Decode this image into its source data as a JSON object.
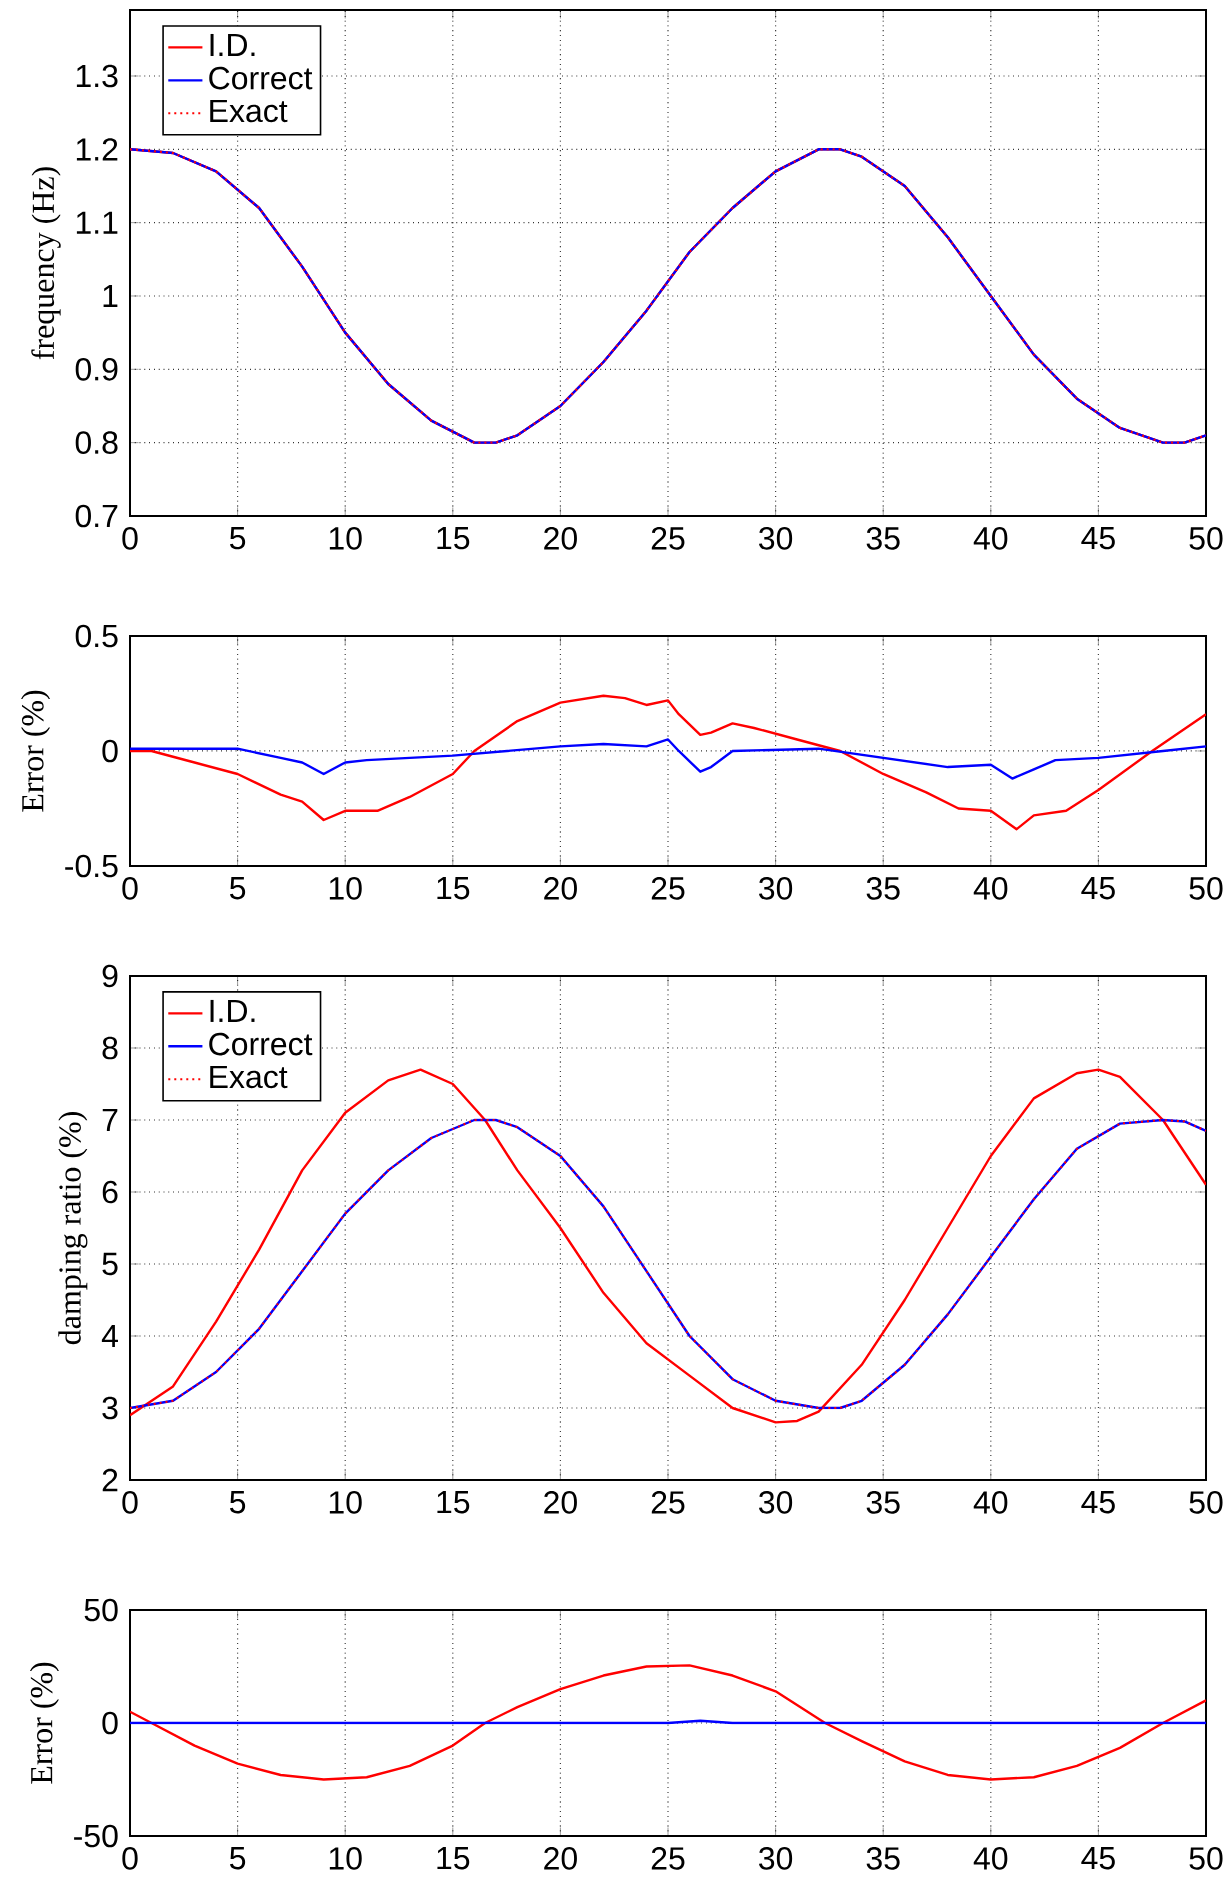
{
  "chart_data": [
    {
      "type": "line",
      "ylabel": "frequency (Hz)",
      "xlim": [
        0,
        50
      ],
      "ylim": [
        0.7,
        1.39
      ],
      "xticks": [
        0,
        5,
        10,
        15,
        20,
        25,
        30,
        35,
        40,
        45,
        50
      ],
      "yticks": [
        0.7,
        0.8,
        0.9,
        1,
        1.1,
        1.2,
        1.3
      ],
      "grid": true,
      "legend": "top left",
      "x": [
        0,
        2,
        4,
        6,
        8,
        10,
        12,
        14,
        16,
        17,
        18,
        20,
        22,
        24,
        26,
        28,
        30,
        32,
        33,
        34,
        36,
        38,
        40,
        42,
        44,
        46,
        48,
        49,
        50
      ],
      "series": [
        {
          "name": "I.D.",
          "color": "#ff0000",
          "line_style": "solid",
          "values": [
            1.2,
            1.195,
            1.17,
            1.12,
            1.04,
            0.95,
            0.88,
            0.83,
            0.8,
            0.8,
            0.81,
            0.85,
            0.91,
            0.98,
            1.06,
            1.12,
            1.17,
            1.2,
            1.2,
            1.19,
            1.15,
            1.08,
            1.0,
            0.92,
            0.86,
            0.82,
            0.8,
            0.8,
            0.81
          ]
        },
        {
          "name": "Correct",
          "color": "#0000ff",
          "line_style": "solid",
          "values": [
            1.2,
            1.195,
            1.17,
            1.12,
            1.04,
            0.95,
            0.88,
            0.83,
            0.8,
            0.8,
            0.81,
            0.85,
            0.91,
            0.98,
            1.06,
            1.12,
            1.17,
            1.2,
            1.2,
            1.19,
            1.15,
            1.08,
            1.0,
            0.92,
            0.86,
            0.82,
            0.8,
            0.8,
            0.81
          ]
        },
        {
          "name": "Exact",
          "color": "#ff0000",
          "line_style": "dotted",
          "values": [
            1.2,
            1.195,
            1.17,
            1.12,
            1.04,
            0.95,
            0.88,
            0.83,
            0.8,
            0.8,
            0.81,
            0.85,
            0.91,
            0.98,
            1.06,
            1.12,
            1.17,
            1.2,
            1.2,
            1.19,
            1.15,
            1.08,
            1.0,
            0.92,
            0.86,
            0.82,
            0.8,
            0.8,
            0.81
          ]
        }
      ]
    },
    {
      "type": "line",
      "ylabel": "Error (%)",
      "xlim": [
        0,
        50
      ],
      "ylim": [
        -0.5,
        0.5
      ],
      "xticks": [
        0,
        5,
        10,
        15,
        20,
        25,
        30,
        35,
        40,
        45,
        50
      ],
      "yticks": [
        -0.5,
        0,
        0.5
      ],
      "grid": true,
      "series": [
        {
          "color": "#ff0000",
          "x": [
            0,
            1,
            3,
            5,
            7,
            8,
            9,
            10,
            11.5,
            13,
            15,
            16,
            18,
            20,
            22,
            23,
            24,
            25,
            25.5,
            26.5,
            27,
            28,
            29,
            31,
            33,
            35,
            37,
            38.5,
            40,
            41.2,
            42,
            43.5,
            45,
            47.5,
            50
          ],
          "values": [
            0,
            0,
            -0.05,
            -0.1,
            -0.19,
            -0.22,
            -0.3,
            -0.26,
            -0.26,
            -0.2,
            -0.1,
            0,
            0.13,
            0.21,
            0.24,
            0.23,
            0.2,
            0.22,
            0.16,
            0.07,
            0.08,
            0.12,
            0.1,
            0.05,
            0,
            -0.1,
            -0.18,
            -0.25,
            -0.26,
            -0.34,
            -0.28,
            -0.26,
            -0.17,
            0,
            0.16
          ]
        },
        {
          "color": "#0000ff",
          "x": [
            0,
            5,
            7,
            8,
            9,
            10,
            11,
            15,
            20,
            22,
            24,
            25,
            25.5,
            26.5,
            27,
            28,
            32,
            35,
            38,
            40,
            41,
            42,
            43,
            45,
            48,
            50
          ],
          "values": [
            0.01,
            0.01,
            -0.03,
            -0.05,
            -0.1,
            -0.05,
            -0.04,
            -0.02,
            0.02,
            0.03,
            0.02,
            0.05,
            0,
            -0.09,
            -0.07,
            0,
            0.01,
            -0.03,
            -0.07,
            -0.06,
            -0.12,
            -0.08,
            -0.04,
            -0.03,
            0,
            0.02
          ]
        }
      ]
    },
    {
      "type": "line",
      "ylabel": "damping ratio (%)",
      "xlim": [
        0,
        50
      ],
      "ylim": [
        2,
        9
      ],
      "xticks": [
        0,
        5,
        10,
        15,
        20,
        25,
        30,
        35,
        40,
        45,
        50
      ],
      "yticks": [
        2,
        3,
        4,
        5,
        6,
        7,
        8,
        9
      ],
      "grid": true,
      "legend": "top left",
      "series": [
        {
          "name": "I.D.",
          "color": "#ff0000",
          "line_style": "solid",
          "x": [
            0,
            2,
            4,
            6,
            8,
            10,
            12,
            13.5,
            15,
            16.5,
            18,
            20,
            22,
            24,
            26,
            28,
            30,
            31,
            32,
            34,
            36,
            38,
            40,
            42,
            44,
            45,
            46,
            48,
            50
          ],
          "values": [
            2.9,
            3.3,
            4.2,
            5.2,
            6.3,
            7.1,
            7.55,
            7.7,
            7.5,
            7.0,
            6.3,
            5.5,
            4.6,
            3.9,
            3.45,
            3.0,
            2.8,
            2.82,
            2.95,
            3.6,
            4.5,
            5.5,
            6.5,
            7.3,
            7.65,
            7.7,
            7.6,
            7.0,
            6.1
          ]
        },
        {
          "name": "Correct",
          "color": "#0000ff",
          "line_style": "solid",
          "x": [
            0,
            2,
            4,
            6,
            8,
            10,
            12,
            14,
            16,
            17,
            18,
            20,
            22,
            24,
            26,
            28,
            30,
            32,
            33,
            34,
            36,
            38,
            40,
            42,
            44,
            46,
            48,
            49,
            50
          ],
          "values": [
            3.0,
            3.1,
            3.5,
            4.1,
            4.9,
            5.7,
            6.3,
            6.75,
            7.0,
            7.0,
            6.9,
            6.5,
            5.8,
            4.9,
            4.0,
            3.4,
            3.1,
            3.0,
            3.0,
            3.1,
            3.6,
            4.3,
            5.1,
            5.9,
            6.6,
            6.95,
            7.0,
            6.98,
            6.85
          ]
        },
        {
          "name": "Exact",
          "color": "#ff0000",
          "line_style": "dotted",
          "x": [
            0,
            2,
            4,
            6,
            8,
            10,
            12,
            14,
            16,
            17,
            18,
            20,
            22,
            24,
            26,
            28,
            30,
            32,
            33,
            34,
            36,
            38,
            40,
            42,
            44,
            46,
            48,
            49,
            50
          ],
          "values": [
            3.0,
            3.1,
            3.5,
            4.1,
            4.9,
            5.7,
            6.3,
            6.75,
            7.0,
            7.0,
            6.9,
            6.5,
            5.8,
            4.9,
            4.0,
            3.4,
            3.1,
            3.0,
            3.0,
            3.1,
            3.6,
            4.3,
            5.1,
            5.9,
            6.6,
            6.95,
            7.0,
            6.98,
            6.85
          ]
        }
      ]
    },
    {
      "type": "line",
      "ylabel": "Error (%)",
      "xlim": [
        0,
        50
      ],
      "ylim": [
        -50,
        50
      ],
      "xticks": [
        0,
        5,
        10,
        15,
        20,
        25,
        30,
        35,
        40,
        45,
        50
      ],
      "yticks": [
        -50,
        0,
        50
      ],
      "grid": true,
      "series": [
        {
          "color": "#ff0000",
          "x": [
            0,
            1,
            3,
            5,
            7,
            9,
            11,
            13,
            15,
            16.5,
            18,
            20,
            22,
            24,
            26,
            28,
            30,
            32.3,
            34,
            36,
            38,
            40,
            42,
            44,
            46,
            48,
            50
          ],
          "values": [
            5,
            0,
            -10,
            -18,
            -23,
            -25,
            -24,
            -19,
            -10,
            0,
            7,
            15,
            21,
            25,
            25.5,
            21,
            14,
            0,
            -8,
            -17,
            -23,
            -25,
            -24,
            -19,
            -11,
            0,
            10
          ]
        },
        {
          "color": "#0000ff",
          "x": [
            0,
            25,
            26.5,
            28,
            50
          ],
          "values": [
            0,
            0,
            1,
            0,
            0
          ]
        }
      ]
    }
  ]
}
